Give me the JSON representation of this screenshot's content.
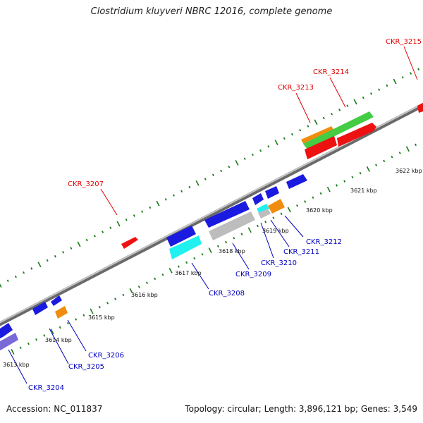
{
  "title": "Clostridium kluyveri NBRC 12016, complete genome",
  "accession_text": "Accession: NC_011837",
  "summary_text": "Topology: circular; Length: 3,896,121 bp; Genes: 3,549",
  "colors": {
    "backbone": "#8a8a8a",
    "tick": "#1a7a1a",
    "label_forward": "#e00000",
    "label_reverse": "#0000c0",
    "red": "#ee1111",
    "orange": "#f08c10",
    "green": "#44cc44",
    "blue": "#1a1ae0",
    "cyan": "#20f0f0",
    "gray": "#bdbdbd",
    "purple": "#7a6ad8"
  },
  "ruler_labels": [
    "3613 kbp",
    "3614 kbp",
    "3615 kbp",
    "3616 kbp",
    "3617 kbp",
    "3618 kbp",
    "3619 kbp",
    "3620 kbp",
    "3621 kbp",
    "3622 kbp"
  ],
  "genes_forward": [
    "CKR_3207",
    "CKR_3213",
    "CKR_3214",
    "CKR_3215"
  ],
  "genes_reverse": [
    "CKR_3204",
    "CKR_3205",
    "CKR_3206",
    "CKR_3208",
    "CKR_3209",
    "CKR_3210",
    "CKR_3211",
    "CKR_3212"
  ]
}
